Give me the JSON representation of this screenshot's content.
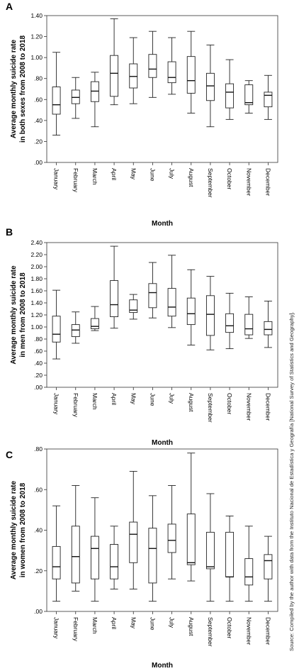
{
  "source_note": "Source: Compiled by the author with data from the Instituto Nacional de Estadística y Geografía [National Survey of Statistics and Geography].",
  "chart_data": [
    {
      "type": "box",
      "panel_label": "A",
      "xlabel": "Month",
      "ylabel_lines": [
        "Average monthly suicide rate",
        "in both sexes from 2008 to 2018"
      ],
      "ylim": [
        0,
        1.4
      ],
      "yticks": [
        ".00",
        ".20",
        ".40",
        ".60",
        ".80",
        "1.00",
        "1.20",
        "1.40"
      ],
      "ytick_values": [
        0,
        0.2,
        0.4,
        0.6,
        0.8,
        1.0,
        1.2,
        1.4
      ],
      "categories": [
        "January",
        "February",
        "March",
        "April",
        "May",
        "June",
        "July",
        "August",
        "September",
        "October",
        "November",
        "December"
      ],
      "boxes": [
        {
          "min": 0.26,
          "q1": 0.46,
          "median": 0.55,
          "q3": 0.72,
          "max": 1.05
        },
        {
          "min": 0.42,
          "q1": 0.56,
          "median": 0.62,
          "q3": 0.69,
          "max": 0.81
        },
        {
          "min": 0.34,
          "q1": 0.58,
          "median": 0.68,
          "q3": 0.77,
          "max": 0.86
        },
        {
          "min": 0.55,
          "q1": 0.63,
          "median": 0.85,
          "q3": 1.02,
          "max": 1.37
        },
        {
          "min": 0.56,
          "q1": 0.71,
          "median": 0.82,
          "q3": 0.94,
          "max": 1.19
        },
        {
          "min": 0.62,
          "q1": 0.81,
          "median": 0.89,
          "q3": 1.03,
          "max": 1.25
        },
        {
          "min": 0.65,
          "q1": 0.76,
          "median": 0.81,
          "q3": 0.96,
          "max": 1.19
        },
        {
          "min": 0.47,
          "q1": 0.66,
          "median": 0.78,
          "q3": 1.01,
          "max": 1.25
        },
        {
          "min": 0.34,
          "q1": 0.59,
          "median": 0.73,
          "q3": 0.85,
          "max": 1.12
        },
        {
          "min": 0.41,
          "q1": 0.52,
          "median": 0.67,
          "q3": 0.75,
          "max": 0.98
        },
        {
          "min": 0.47,
          "q1": 0.55,
          "median": 0.57,
          "q3": 0.74,
          "max": 0.78
        },
        {
          "min": 0.41,
          "q1": 0.53,
          "median": 0.64,
          "q3": 0.67,
          "max": 0.83
        }
      ]
    },
    {
      "type": "box",
      "panel_label": "B",
      "xlabel": "Month",
      "ylabel_lines": [
        "Average monthly suicide rate",
        "in men from 2008 to 2018"
      ],
      "ylim": [
        0,
        2.4
      ],
      "yticks": [
        ".00",
        ".20",
        ".40",
        ".60",
        ".80",
        "1.00",
        "1.20",
        "1.40",
        "1.60",
        "1.80",
        "2.00",
        "2.20",
        "2.40"
      ],
      "ytick_values": [
        0,
        0.2,
        0.4,
        0.6,
        0.8,
        1.0,
        1.2,
        1.4,
        1.6,
        1.8,
        2.0,
        2.2,
        2.4
      ],
      "categories": [
        "January",
        "February",
        "March",
        "April",
        "May",
        "June",
        "July",
        "August",
        "September",
        "October",
        "November",
        "December"
      ],
      "boxes": [
        {
          "min": 0.47,
          "q1": 0.75,
          "median": 0.88,
          "q3": 1.18,
          "max": 1.61
        },
        {
          "min": 0.73,
          "q1": 0.84,
          "median": 0.95,
          "q3": 1.04,
          "max": 1.25
        },
        {
          "min": 0.94,
          "q1": 0.97,
          "median": 1.01,
          "q3": 1.14,
          "max": 1.34
        },
        {
          "min": 0.98,
          "q1": 1.17,
          "median": 1.37,
          "q3": 1.77,
          "max": 2.34
        },
        {
          "min": 1.13,
          "q1": 1.24,
          "median": 1.28,
          "q3": 1.45,
          "max": 1.54
        },
        {
          "min": 1.15,
          "q1": 1.32,
          "median": 1.57,
          "q3": 1.72,
          "max": 2.07
        },
        {
          "min": 0.99,
          "q1": 1.18,
          "median": 1.33,
          "q3": 1.64,
          "max": 2.19
        },
        {
          "min": 0.7,
          "q1": 1.04,
          "median": 1.22,
          "q3": 1.48,
          "max": 1.95
        },
        {
          "min": 0.62,
          "q1": 0.86,
          "median": 1.21,
          "q3": 1.52,
          "max": 1.84
        },
        {
          "min": 0.64,
          "q1": 0.91,
          "median": 1.02,
          "q3": 1.22,
          "max": 1.56
        },
        {
          "min": 0.81,
          "q1": 0.87,
          "median": 0.97,
          "q3": 1.21,
          "max": 1.5
        },
        {
          "min": 0.66,
          "q1": 0.87,
          "median": 0.96,
          "q3": 1.09,
          "max": 1.43
        }
      ]
    },
    {
      "type": "box",
      "panel_label": "C",
      "xlabel": "Month",
      "ylabel_lines": [
        "Average monthly suicide rate",
        "in women from 2008 to 2018"
      ],
      "ylim": [
        0,
        0.8
      ],
      "yticks": [
        ".00",
        ".20",
        ".40",
        ".60",
        ".80"
      ],
      "ytick_values": [
        0,
        0.2,
        0.4,
        0.6,
        0.8
      ],
      "categories": [
        "January",
        "February",
        "March",
        "April",
        "May",
        "June",
        "July",
        "August",
        "September",
        "October",
        "November",
        "December"
      ],
      "boxes": [
        {
          "min": 0.05,
          "q1": 0.16,
          "median": 0.22,
          "q3": 0.32,
          "max": 0.52
        },
        {
          "min": 0.1,
          "q1": 0.14,
          "median": 0.27,
          "q3": 0.42,
          "max": 0.62
        },
        {
          "min": 0.05,
          "q1": 0.16,
          "median": 0.31,
          "q3": 0.37,
          "max": 0.56
        },
        {
          "min": 0.11,
          "q1": 0.16,
          "median": 0.22,
          "q3": 0.33,
          "max": 0.42
        },
        {
          "min": 0.11,
          "q1": 0.24,
          "median": 0.38,
          "q3": 0.44,
          "max": 0.69
        },
        {
          "min": 0.05,
          "q1": 0.14,
          "median": 0.31,
          "q3": 0.41,
          "max": 0.57
        },
        {
          "min": 0.16,
          "q1": 0.29,
          "median": 0.35,
          "q3": 0.43,
          "max": 0.62
        },
        {
          "min": 0.15,
          "q1": 0.23,
          "median": 0.24,
          "q3": 0.48,
          "max": 0.78
        },
        {
          "min": 0.05,
          "q1": 0.21,
          "median": 0.22,
          "q3": 0.39,
          "max": 0.58
        },
        {
          "min": 0.05,
          "q1": 0.17,
          "median": 0.17,
          "q3": 0.39,
          "max": 0.47
        },
        {
          "min": 0.05,
          "q1": 0.13,
          "median": 0.17,
          "q3": 0.26,
          "max": 0.42
        },
        {
          "min": 0.05,
          "q1": 0.16,
          "median": 0.25,
          "q3": 0.28,
          "max": 0.37
        }
      ]
    }
  ]
}
